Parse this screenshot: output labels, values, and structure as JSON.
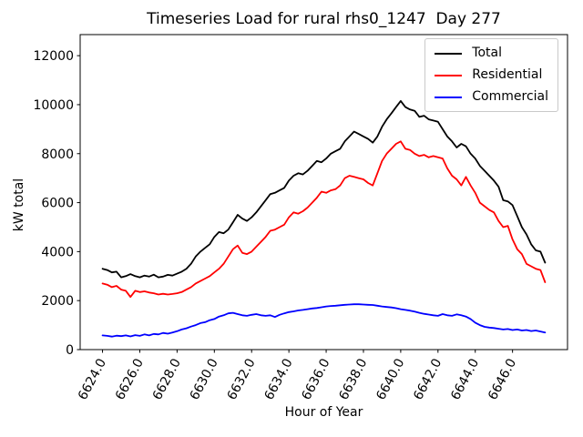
{
  "chart_data": {
    "type": "line",
    "title": "Timeseries Load for rural rhs0_1247  Day 277",
    "xlabel": "Hour of Year",
    "ylabel": "kW total",
    "grid": false,
    "legend_position": "upper right",
    "xlim": [
      6622.8,
      6648.95
    ],
    "ylim": [
      0,
      12860
    ],
    "x_ticks": [
      6624,
      6626,
      6628,
      6630,
      6632,
      6634,
      6636,
      6638,
      6640,
      6642,
      6644,
      6646
    ],
    "x_tick_labels": [
      "6624.0",
      "6626.0",
      "6628.0",
      "6630.0",
      "6632.0",
      "6634.0",
      "6636.0",
      "6638.0",
      "6640.0",
      "6642.0",
      "6644.0",
      "6646.0"
    ],
    "y_ticks": [
      0,
      2000,
      4000,
      6000,
      8000,
      10000,
      12000
    ],
    "y_tick_labels": [
      "0",
      "2000",
      "4000",
      "6000",
      "8000",
      "10000",
      "12000"
    ],
    "x": [
      6624.0,
      6624.25,
      6624.5,
      6624.75,
      6625.0,
      6625.25,
      6625.5,
      6625.75,
      6626.0,
      6626.25,
      6626.5,
      6626.75,
      6627.0,
      6627.25,
      6627.5,
      6627.75,
      6628.0,
      6628.25,
      6628.5,
      6628.75,
      6629.0,
      6629.25,
      6629.5,
      6629.75,
      6630.0,
      6630.25,
      6630.5,
      6630.75,
      6631.0,
      6631.25,
      6631.5,
      6631.75,
      6632.0,
      6632.25,
      6632.5,
      6632.75,
      6633.0,
      6633.25,
      6633.5,
      6633.75,
      6634.0,
      6634.25,
      6634.5,
      6634.75,
      6635.0,
      6635.25,
      6635.5,
      6635.75,
      6636.0,
      6636.25,
      6636.5,
      6636.75,
      6637.0,
      6637.25,
      6637.5,
      6637.75,
      6638.0,
      6638.25,
      6638.5,
      6638.75,
      6639.0,
      6639.25,
      6639.5,
      6639.75,
      6640.0,
      6640.25,
      6640.5,
      6640.75,
      6641.0,
      6641.25,
      6641.5,
      6641.75,
      6642.0,
      6642.25,
      6642.5,
      6642.75,
      6643.0,
      6643.25,
      6643.5,
      6643.75,
      6644.0,
      6644.25,
      6644.5,
      6644.75,
      6645.0,
      6645.25,
      6645.5,
      6645.75,
      6646.0,
      6646.25,
      6646.5,
      6646.75,
      6647.0,
      6647.25,
      6647.5,
      6647.75
    ],
    "series": [
      {
        "name": "Total",
        "color": "#000000",
        "values": [
          3300,
          3250,
          3150,
          3180,
          2950,
          3000,
          3080,
          3000,
          2950,
          3020,
          2980,
          3060,
          2950,
          2980,
          3050,
          3020,
          3100,
          3180,
          3300,
          3500,
          3800,
          4000,
          4150,
          4300,
          4600,
          4800,
          4750,
          4900,
          5200,
          5500,
          5350,
          5250,
          5400,
          5600,
          5850,
          6100,
          6350,
          6400,
          6500,
          6600,
          6900,
          7100,
          7200,
          7150,
          7300,
          7500,
          7700,
          7650,
          7800,
          8000,
          8100,
          8200,
          8500,
          8700,
          8900,
          8800,
          8700,
          8600,
          8450,
          8700,
          9100,
          9400,
          9650,
          9900,
          10150,
          9900,
          9800,
          9750,
          9500,
          9550,
          9400,
          9350,
          9300,
          9000,
          8700,
          8500,
          8250,
          8400,
          8300,
          8000,
          7800,
          7500,
          7300,
          7100,
          6900,
          6650,
          6100,
          6050,
          5900,
          5450,
          5000,
          4700,
          4300,
          4050,
          4000,
          3550
        ]
      },
      {
        "name": "Residential",
        "color": "#ff0000",
        "values": [
          2700,
          2650,
          2550,
          2600,
          2450,
          2400,
          2150,
          2400,
          2350,
          2380,
          2330,
          2300,
          2250,
          2280,
          2250,
          2270,
          2300,
          2350,
          2450,
          2550,
          2700,
          2800,
          2900,
          3000,
          3150,
          3300,
          3500,
          3800,
          4100,
          4250,
          3950,
          3900,
          4000,
          4200,
          4400,
          4600,
          4850,
          4900,
          5000,
          5100,
          5400,
          5600,
          5550,
          5650,
          5800,
          6000,
          6200,
          6450,
          6400,
          6500,
          6550,
          6700,
          7000,
          7100,
          7050,
          7000,
          6950,
          6800,
          6700,
          7200,
          7700,
          8000,
          8200,
          8400,
          8500,
          8200,
          8150,
          8000,
          7900,
          7950,
          7850,
          7900,
          7850,
          7800,
          7400,
          7100,
          6950,
          6700,
          7050,
          6700,
          6400,
          6000,
          5850,
          5700,
          5600,
          5250,
          5000,
          5050,
          4500,
          4100,
          3900,
          3500,
          3400,
          3300,
          3250,
          2750
        ]
      },
      {
        "name": "Commercial",
        "color": "#0000ff",
        "values": [
          580,
          560,
          530,
          570,
          550,
          580,
          540,
          590,
          560,
          620,
          580,
          640,
          620,
          680,
          650,
          700,
          750,
          820,
          870,
          940,
          1000,
          1080,
          1120,
          1200,
          1250,
          1350,
          1400,
          1480,
          1500,
          1450,
          1400,
          1380,
          1420,
          1450,
          1400,
          1380,
          1400,
          1330,
          1420,
          1480,
          1530,
          1560,
          1600,
          1620,
          1650,
          1680,
          1700,
          1730,
          1760,
          1780,
          1790,
          1810,
          1830,
          1840,
          1850,
          1850,
          1840,
          1830,
          1820,
          1790,
          1760,
          1740,
          1720,
          1690,
          1650,
          1620,
          1590,
          1550,
          1500,
          1460,
          1430,
          1400,
          1380,
          1450,
          1400,
          1380,
          1440,
          1400,
          1350,
          1250,
          1100,
          1000,
          930,
          900,
          880,
          850,
          820,
          840,
          800,
          820,
          780,
          800,
          760,
          780,
          740,
          700
        ]
      }
    ]
  }
}
